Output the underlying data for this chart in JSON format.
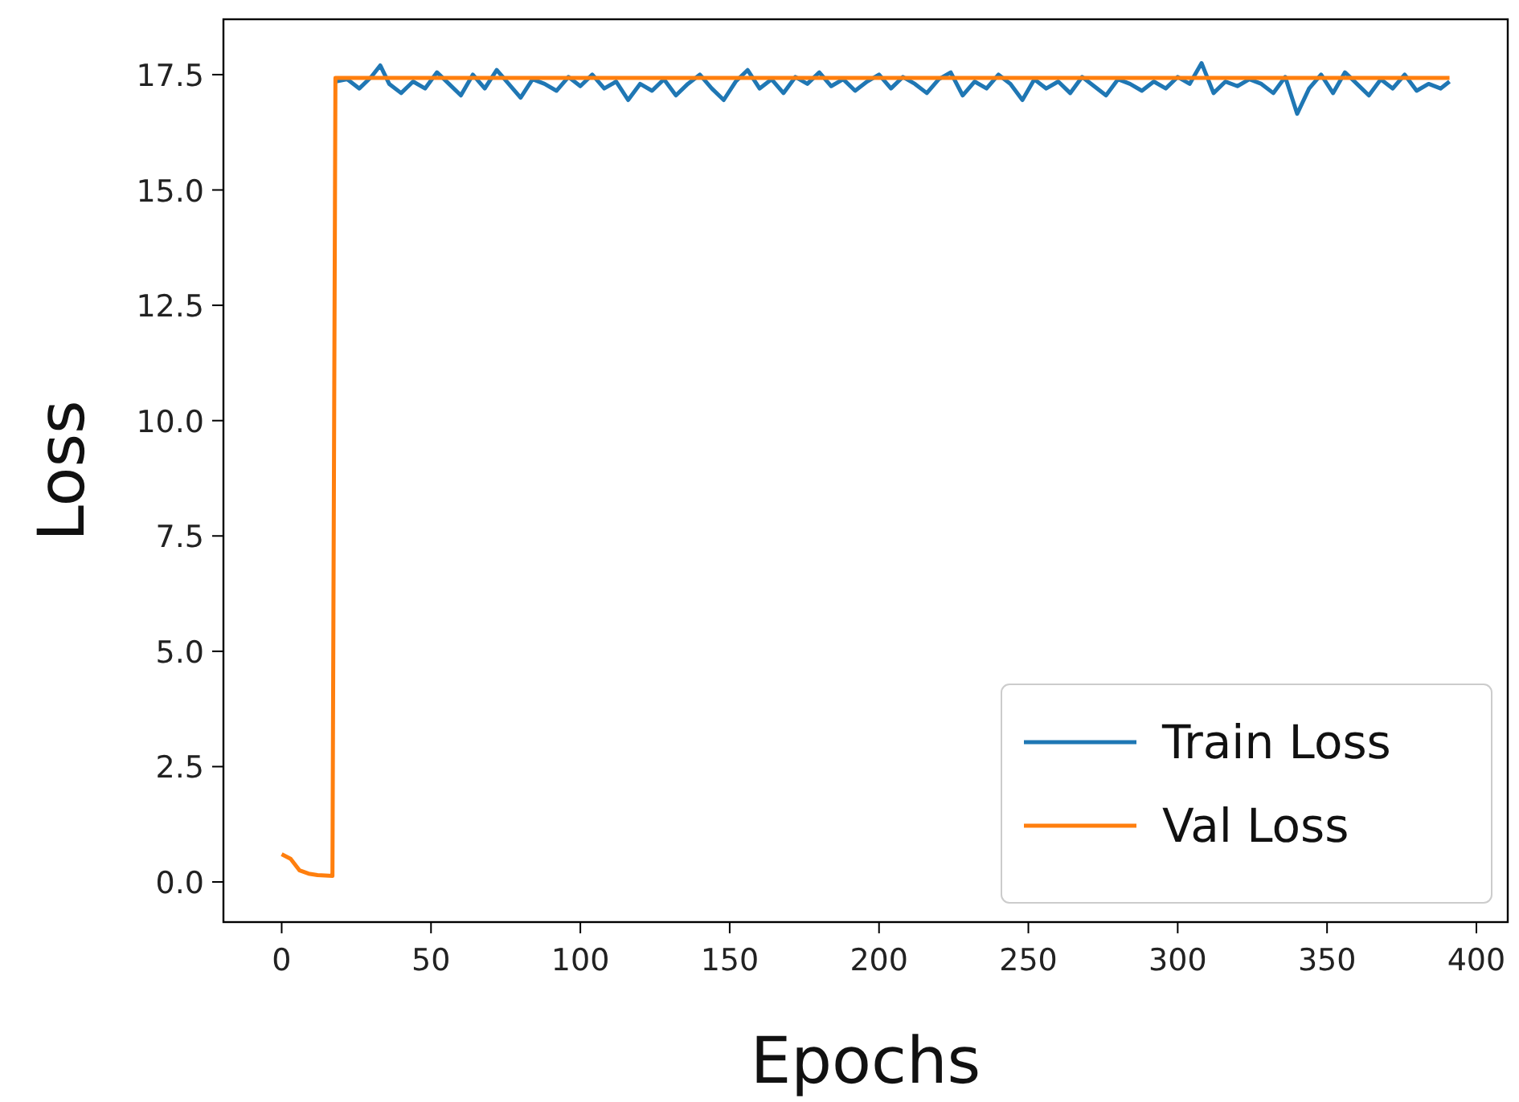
{
  "chart_data": {
    "type": "line",
    "xlabel": "Epochs",
    "ylabel": "Loss",
    "xlim": [
      -19.5,
      410.5
    ],
    "ylim": [
      -0.87,
      18.7
    ],
    "xticks": [
      0,
      50,
      100,
      150,
      200,
      250,
      300,
      350,
      400
    ],
    "yticks": [
      {
        "value": 0,
        "label": "0.0"
      },
      {
        "value": 2.5,
        "label": "2.5"
      },
      {
        "value": 5,
        "label": "5.0"
      },
      {
        "value": 7.5,
        "label": "7.5"
      },
      {
        "value": 10,
        "label": "10.0"
      },
      {
        "value": 12.5,
        "label": "12.5"
      },
      {
        "value": 15,
        "label": "15.0"
      },
      {
        "value": 17.5,
        "label": "17.5"
      }
    ],
    "legend": "bottom right",
    "grid": false,
    "series": [
      {
        "name": "Train Loss",
        "color": "#1f77b4",
        "x": [
          18,
          22,
          26,
          30,
          33,
          36,
          40,
          44,
          48,
          52,
          56,
          60,
          64,
          68,
          72,
          76,
          80,
          84,
          88,
          92,
          96,
          100,
          104,
          108,
          112,
          116,
          120,
          124,
          128,
          132,
          136,
          140,
          144,
          148,
          152,
          156,
          160,
          164,
          168,
          172,
          176,
          180,
          184,
          188,
          192,
          196,
          200,
          204,
          208,
          212,
          216,
          220,
          224,
          228,
          232,
          236,
          240,
          244,
          248,
          252,
          256,
          260,
          264,
          268,
          272,
          276,
          280,
          284,
          288,
          292,
          296,
          300,
          304,
          308,
          312,
          316,
          320,
          324,
          328,
          332,
          336,
          340,
          344,
          348,
          352,
          356,
          360,
          364,
          368,
          372,
          376,
          380,
          384,
          388,
          391
        ],
        "values": [
          17.35,
          17.4,
          17.2,
          17.45,
          17.7,
          17.3,
          17.1,
          17.35,
          17.2,
          17.55,
          17.3,
          17.05,
          17.5,
          17.2,
          17.6,
          17.3,
          17.0,
          17.4,
          17.3,
          17.15,
          17.45,
          17.25,
          17.5,
          17.2,
          17.35,
          16.95,
          17.3,
          17.15,
          17.4,
          17.05,
          17.3,
          17.5,
          17.2,
          16.95,
          17.35,
          17.6,
          17.2,
          17.4,
          17.1,
          17.45,
          17.3,
          17.55,
          17.25,
          17.4,
          17.15,
          17.35,
          17.5,
          17.2,
          17.45,
          17.3,
          17.1,
          17.4,
          17.55,
          17.05,
          17.35,
          17.2,
          17.5,
          17.3,
          16.95,
          17.4,
          17.2,
          17.35,
          17.1,
          17.45,
          17.25,
          17.05,
          17.4,
          17.3,
          17.15,
          17.35,
          17.2,
          17.45,
          17.3,
          17.75,
          17.1,
          17.35,
          17.25,
          17.4,
          17.3,
          17.1,
          17.45,
          16.65,
          17.2,
          17.5,
          17.1,
          17.55,
          17.3,
          17.05,
          17.4,
          17.2,
          17.5,
          17.15,
          17.3,
          17.2,
          17.35
        ]
      },
      {
        "name": "Val Loss",
        "color": "#ff7f0e",
        "x": [
          0,
          3,
          6,
          9,
          12,
          17,
          18,
          391
        ],
        "values": [
          0.6,
          0.5,
          0.25,
          0.18,
          0.15,
          0.13,
          17.43,
          17.43
        ]
      }
    ]
  }
}
